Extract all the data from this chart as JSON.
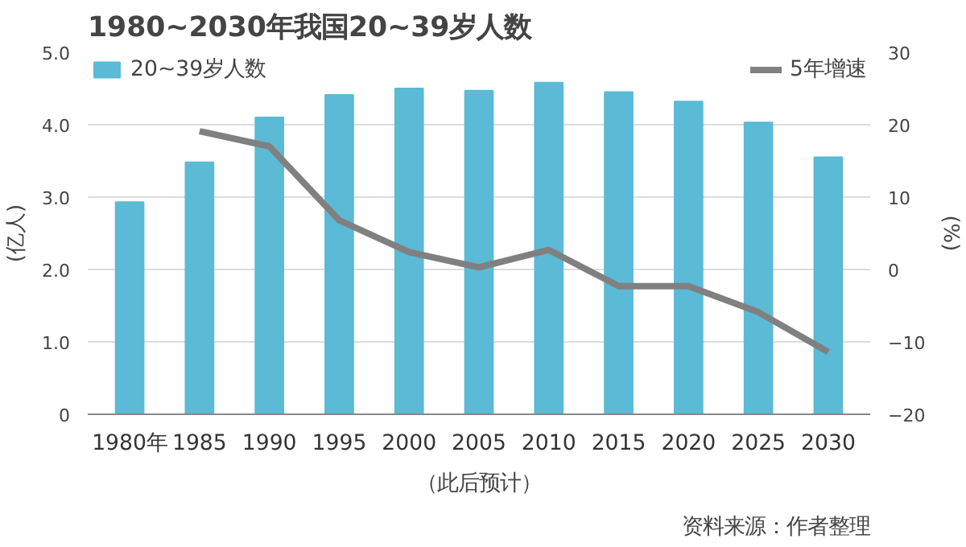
{
  "chart_data": {
    "type": "bar",
    "title": "1980~2030年我国20~39岁人数",
    "categories": [
      "1980年",
      "1985",
      "1990",
      "1995",
      "2000",
      "2005",
      "2010",
      "2015",
      "2020",
      "2025",
      "2030"
    ],
    "series": [
      {
        "name": "20~39岁人数",
        "color": "#5bbad5",
        "values": [
          2.93,
          3.48,
          4.1,
          4.41,
          4.5,
          4.47,
          4.58,
          4.45,
          4.32,
          4.03,
          3.55
        ]
      },
      {
        "name": "5年增速",
        "type": "line",
        "axis": "y2",
        "color": "#808080",
        "values": [
          null,
          19.1,
          17.0,
          6.8,
          2.4,
          0.3,
          2.7,
          -2.3,
          -2.3,
          -5.9,
          -11.4
        ]
      }
    ],
    "ylabel": "(亿人)",
    "y2label": "(%)",
    "ylim": [
      0,
      5
    ],
    "yticks": [
      0,
      {
        "value": 1,
        "label": "1.0"
      },
      {
        "value": 2,
        "label": "2.0"
      },
      {
        "value": 3,
        "label": "3.0"
      },
      {
        "value": 4,
        "label": "4.0"
      },
      {
        "value": 5,
        "label": "5.0"
      }
    ],
    "y2lim": [
      -20,
      30
    ],
    "y2ticks": [
      -20,
      -10,
      0,
      10,
      20,
      30
    ],
    "grid": "y",
    "legend": "top",
    "annotations": [
      "（此后预计）",
      "资料来源：作者整理"
    ]
  }
}
